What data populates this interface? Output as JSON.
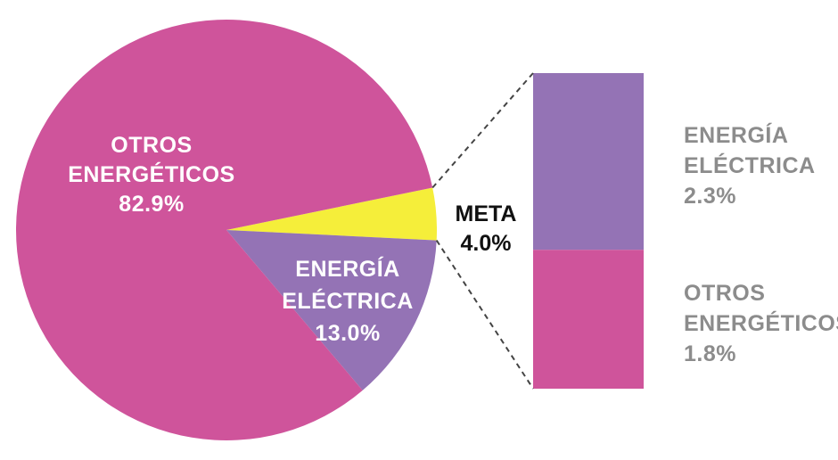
{
  "colors": {
    "otros": "#cf549b",
    "energia": "#9473b5",
    "meta": "#f5ee3a",
    "dash": "#444444",
    "side_text": "#8c8c8c",
    "pie_text": "#ffffff",
    "meta_text": "#111111"
  },
  "chart_data": [
    {
      "type": "pie",
      "slices": [
        {
          "name": "OTROS ENERGÉTICOS",
          "value": 82.9,
          "lines": [
            "OTROS",
            "ENERGÉTICOS",
            "82.9%"
          ]
        },
        {
          "name": "ENERGÍA ELÉCTRICA",
          "value": 13.0,
          "lines": [
            "ENERGÍA",
            "ELÉCTRICA",
            "13.0%"
          ]
        },
        {
          "name": "META",
          "value": 4.0,
          "lines": [
            "META",
            "4.0%"
          ]
        }
      ]
    },
    {
      "type": "bar",
      "stacked": true,
      "segments": [
        {
          "name": "ENERGÍA ELÉCTRICA",
          "value": 2.3,
          "lines": [
            "ENERGÍA",
            "ELÉCTRICA",
            "2.3%"
          ]
        },
        {
          "name": "OTROS ENERGÉTICOS",
          "value": 1.8,
          "lines": [
            "OTROS",
            "ENERGÉTICOS",
            "1.8%"
          ]
        }
      ]
    }
  ]
}
